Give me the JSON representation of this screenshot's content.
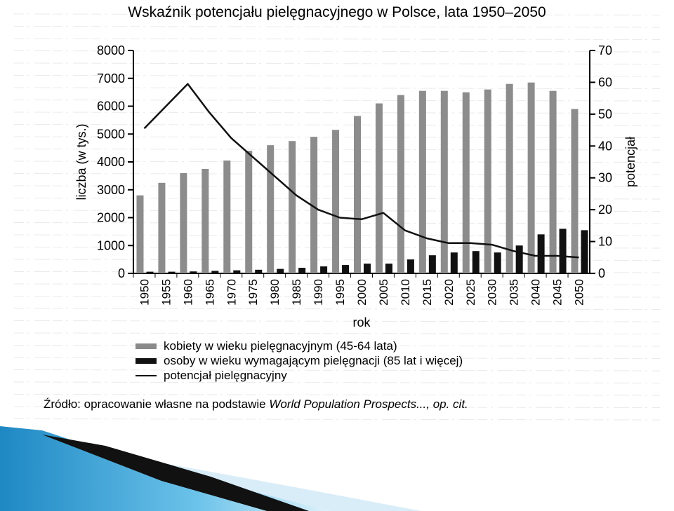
{
  "colors": {
    "women_bars": "#8c8c8c",
    "elderly_bars": "#111111",
    "line": "#111111",
    "background_text": "#9a9a9a",
    "accent_blue": "#3aa4d4"
  },
  "chart_data": {
    "type": "bar",
    "title": "Wskaźnik potencjału pielęgnacyjnego w Polsce, lata 1950–2050",
    "xlabel": "rok",
    "ylabel": "liczba (w tys.)",
    "y2label": "potencjał",
    "categories": [
      "1950",
      "1955",
      "1960",
      "1965",
      "1970",
      "1975",
      "1980",
      "1985",
      "1990",
      "1995",
      "2000",
      "2005",
      "2010",
      "2015",
      "2020",
      "2025",
      "2030",
      "2035",
      "2040",
      "2045",
      "2050"
    ],
    "ylim": [
      0,
      8000
    ],
    "yticks": [
      "0",
      "1000",
      "2000",
      "3000",
      "4000",
      "5000",
      "6000",
      "7000",
      "8000"
    ],
    "y2lim": [
      0,
      70
    ],
    "y2ticks": [
      "0",
      "10",
      "20",
      "30",
      "40",
      "50",
      "60",
      "70"
    ],
    "series": [
      {
        "name": "kobiety w wieku pielęgnacyjnym (45-64 lata)",
        "type": "bar",
        "values": [
          2800,
          3250,
          3600,
          3750,
          4050,
          4400,
          4600,
          4750,
          4900,
          5150,
          5650,
          6100,
          6400,
          6550,
          6550,
          6500,
          6600,
          6800,
          6850,
          6550,
          5900
        ]
      },
      {
        "name": "osoby w wieku wymagającym pielęgnacji (85 lat i więcej)",
        "type": "bar",
        "values": [
          60,
          60,
          70,
          90,
          110,
          130,
          160,
          200,
          250,
          300,
          350,
          350,
          500,
          650,
          750,
          800,
          750,
          1000,
          1400,
          1600,
          1550
        ]
      },
      {
        "name": "potencjał pielęgnacyjny",
        "type": "line",
        "axis": "right",
        "values": [
          45.5,
          52.5,
          59.5,
          50.5,
          42.5,
          36.5,
          30.5,
          24.5,
          20,
          17.5,
          17,
          19,
          13.5,
          11,
          9.5,
          9.5,
          9,
          7,
          5.5,
          5.5,
          5
        ]
      }
    ],
    "legend_position": "bottom-left",
    "grid": false,
    "source": {
      "prefix": "Źródło: opracowanie własne na podstawie ",
      "italic": "World Population Prospects..., op. cit.",
      "suffix": ""
    }
  }
}
